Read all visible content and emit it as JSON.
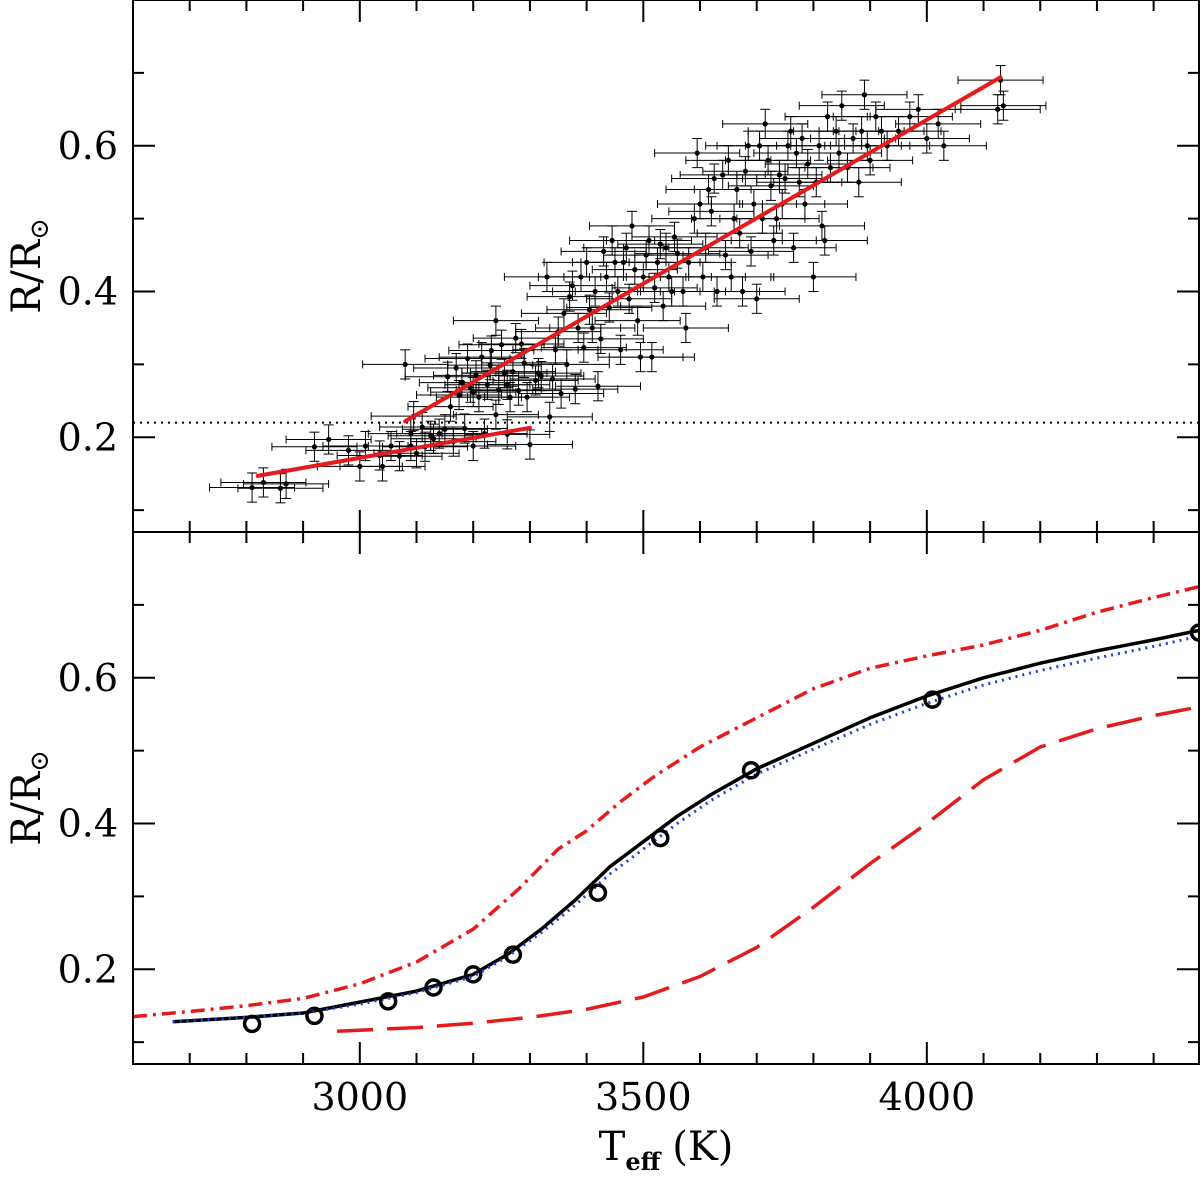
{
  "colors": {
    "fit": "#e41a1c",
    "points": "#000000",
    "threshold": "#000000",
    "model_solid": "#000000",
    "model_blue_dotted": "#1f3fd6",
    "model_red_dashdot": "#e41a1c",
    "model_red_dashed": "#e41a1c"
  },
  "chart_data": [
    {
      "panel": "top",
      "type": "scatter",
      "title": "",
      "xlabel": "",
      "ylabel": "R/R⊙",
      "xlim": [
        2600,
        4480
      ],
      "ylim": [
        0.07,
        0.8
      ],
      "yticks": [
        0.2,
        0.4,
        0.6
      ],
      "ytick_labels": [
        "0.2",
        "0.4",
        "0.6"
      ],
      "threshold_y": 0.22,
      "fits": [
        {
          "name": "low-mass fit",
          "x": [
            2820,
            3300
          ],
          "y": [
            0.147,
            0.213
          ]
        },
        {
          "name": "high-mass fit",
          "x": [
            3080,
            4130
          ],
          "y": [
            0.222,
            0.694
          ]
        }
      ],
      "points": [
        [
          2810,
          0.131
        ],
        [
          2830,
          0.138
        ],
        [
          2860,
          0.13
        ],
        [
          2870,
          0.136
        ],
        [
          2920,
          0.187
        ],
        [
          2945,
          0.197
        ],
        [
          2980,
          0.182
        ],
        [
          3000,
          0.16
        ],
        [
          3040,
          0.16
        ],
        [
          3010,
          0.188
        ],
        [
          3035,
          0.175
        ],
        [
          3055,
          0.188
        ],
        [
          3070,
          0.174
        ],
        [
          3080,
          0.3
        ],
        [
          3090,
          0.205
        ],
        [
          3090,
          0.188
        ],
        [
          3095,
          0.229
        ],
        [
          3100,
          0.178
        ],
        [
          3110,
          0.214
        ],
        [
          3115,
          0.187
        ],
        [
          3125,
          0.202
        ],
        [
          3130,
          0.198
        ],
        [
          3140,
          0.205
        ],
        [
          3150,
          0.211
        ],
        [
          3155,
          0.283
        ],
        [
          3160,
          0.242
        ],
        [
          3165,
          0.194
        ],
        [
          3170,
          0.295
        ],
        [
          3175,
          0.258
        ],
        [
          3180,
          0.275
        ],
        [
          3185,
          0.212
        ],
        [
          3190,
          0.308
        ],
        [
          3195,
          0.268
        ],
        [
          3200,
          0.188
        ],
        [
          3200,
          0.262
        ],
        [
          3205,
          0.285
        ],
        [
          3210,
          0.255
        ],
        [
          3215,
          0.31
        ],
        [
          3220,
          0.205
        ],
        [
          3225,
          0.272
        ],
        [
          3230,
          0.299
        ],
        [
          3232,
          0.319
        ],
        [
          3240,
          0.36
        ],
        [
          3240,
          0.231
        ],
        [
          3245,
          0.265
        ],
        [
          3250,
          0.327
        ],
        [
          3255,
          0.288
        ],
        [
          3260,
          0.204
        ],
        [
          3260,
          0.272
        ],
        [
          3265,
          0.255
        ],
        [
          3270,
          0.29
        ],
        [
          3275,
          0.336
        ],
        [
          3280,
          0.264
        ],
        [
          3285,
          0.328
        ],
        [
          3290,
          0.302
        ],
        [
          3295,
          0.255
        ],
        [
          3300,
          0.19
        ],
        [
          3310,
          0.278
        ],
        [
          3315,
          0.288
        ],
        [
          3320,
          0.284
        ],
        [
          3330,
          0.42
        ],
        [
          3335,
          0.228
        ],
        [
          3340,
          0.28
        ],
        [
          3345,
          0.32
        ],
        [
          3350,
          0.345
        ],
        [
          3355,
          0.26
        ],
        [
          3360,
          0.37
        ],
        [
          3365,
          0.3
        ],
        [
          3370,
          0.393
        ],
        [
          3375,
          0.408
        ],
        [
          3380,
          0.266
        ],
        [
          3385,
          0.35
        ],
        [
          3390,
          0.42
        ],
        [
          3395,
          0.323
        ],
        [
          3400,
          0.44
        ],
        [
          3405,
          0.375
        ],
        [
          3410,
          0.35
        ],
        [
          3415,
          0.4
        ],
        [
          3420,
          0.27
        ],
        [
          3425,
          0.335
        ],
        [
          3430,
          0.455
        ],
        [
          3435,
          0.42
        ],
        [
          3440,
          0.378
        ],
        [
          3445,
          0.47
        ],
        [
          3450,
          0.44
        ],
        [
          3455,
          0.4
        ],
        [
          3460,
          0.32
        ],
        [
          3465,
          0.44
        ],
        [
          3470,
          0.46
        ],
        [
          3475,
          0.39
        ],
        [
          3480,
          0.49
        ],
        [
          3485,
          0.43
        ],
        [
          3490,
          0.36
        ],
        [
          3495,
          0.31
        ],
        [
          3500,
          0.42
        ],
        [
          3505,
          0.45
        ],
        [
          3510,
          0.47
        ],
        [
          3515,
          0.31
        ],
        [
          3520,
          0.405
        ],
        [
          3525,
          0.44
        ],
        [
          3530,
          0.465
        ],
        [
          3535,
          0.38
        ],
        [
          3540,
          0.46
        ],
        [
          3545,
          0.42
        ],
        [
          3550,
          0.4
        ],
        [
          3555,
          0.475
        ],
        [
          3560,
          0.452
        ],
        [
          3570,
          0.4
        ],
        [
          3575,
          0.35
        ],
        [
          3580,
          0.44
        ],
        [
          3590,
          0.5
        ],
        [
          3595,
          0.59
        ],
        [
          3600,
          0.52
        ],
        [
          3605,
          0.42
        ],
        [
          3610,
          0.46
        ],
        [
          3615,
          0.54
        ],
        [
          3620,
          0.51
        ],
        [
          3625,
          0.555
        ],
        [
          3630,
          0.4
        ],
        [
          3640,
          0.56
        ],
        [
          3645,
          0.45
        ],
        [
          3650,
          0.58
        ],
        [
          3655,
          0.42
        ],
        [
          3660,
          0.5
        ],
        [
          3665,
          0.54
        ],
        [
          3670,
          0.48
        ],
        [
          3675,
          0.4
        ],
        [
          3680,
          0.565
        ],
        [
          3685,
          0.6
        ],
        [
          3690,
          0.455
        ],
        [
          3695,
          0.52
        ],
        [
          3700,
          0.39
        ],
        [
          3705,
          0.6
        ],
        [
          3710,
          0.5
        ],
        [
          3715,
          0.63
        ],
        [
          3720,
          0.58
        ],
        [
          3725,
          0.545
        ],
        [
          3730,
          0.47
        ],
        [
          3735,
          0.5
        ],
        [
          3740,
          0.56
        ],
        [
          3745,
          0.52
        ],
        [
          3750,
          0.555
        ],
        [
          3755,
          0.6
        ],
        [
          3760,
          0.62
        ],
        [
          3765,
          0.46
        ],
        [
          3770,
          0.59
        ],
        [
          3775,
          0.55
        ],
        [
          3780,
          0.61
        ],
        [
          3785,
          0.52
        ],
        [
          3790,
          0.575
        ],
        [
          3800,
          0.42
        ],
        [
          3805,
          0.55
        ],
        [
          3810,
          0.6
        ],
        [
          3815,
          0.49
        ],
        [
          3820,
          0.47
        ],
        [
          3825,
          0.64
        ],
        [
          3830,
          0.57
        ],
        [
          3840,
          0.62
        ],
        [
          3845,
          0.59
        ],
        [
          3850,
          0.655
        ],
        [
          3860,
          0.57
        ],
        [
          3870,
          0.61
        ],
        [
          3880,
          0.55
        ],
        [
          3885,
          0.62
        ],
        [
          3890,
          0.67
        ],
        [
          3895,
          0.6
        ],
        [
          3900,
          0.58
        ],
        [
          3910,
          0.64
        ],
        [
          3920,
          0.62
        ],
        [
          3930,
          0.6
        ],
        [
          3950,
          0.62
        ],
        [
          3970,
          0.64
        ],
        [
          3985,
          0.65
        ],
        [
          4000,
          0.61
        ],
        [
          4020,
          0.63
        ],
        [
          4030,
          0.6
        ],
        [
          4125,
          0.65
        ],
        [
          4130,
          0.69
        ],
        [
          4135,
          0.655
        ]
      ],
      "x_err": 75,
      "y_err": 0.02
    },
    {
      "panel": "bottom",
      "type": "line",
      "title": "",
      "xlabel": "Teff (K)",
      "ylabel": "R/R⊙",
      "xlim": [
        2600,
        4480
      ],
      "ylim": [
        0.07,
        0.8
      ],
      "xticks": [
        3000,
        3500,
        4000
      ],
      "xtick_labels": [
        "3000",
        "3500",
        "4000"
      ],
      "yticks": [
        0.2,
        0.4,
        0.6
      ],
      "ytick_labels": [
        "0.2",
        "0.4",
        "0.6"
      ],
      "series": [
        {
          "name": "model solid black",
          "style": "solid",
          "x": [
            2670,
            2800,
            2900,
            3000,
            3100,
            3200,
            3260,
            3320,
            3380,
            3440,
            3500,
            3560,
            3620,
            3700,
            3800,
            3900,
            4000,
            4100,
            4200,
            4300,
            4400,
            4480
          ],
          "y": [
            0.128,
            0.134,
            0.14,
            0.155,
            0.17,
            0.193,
            0.22,
            0.255,
            0.295,
            0.34,
            0.375,
            0.41,
            0.44,
            0.475,
            0.51,
            0.545,
            0.575,
            0.6,
            0.62,
            0.637,
            0.652,
            0.665
          ]
        },
        {
          "name": "model blue dotted",
          "style": "dotted",
          "x": [
            2670,
            2800,
            2900,
            3000,
            3100,
            3200,
            3260,
            3320,
            3380,
            3440,
            3500,
            3560,
            3620,
            3700,
            3800,
            3900,
            4000,
            4100,
            4200,
            4300,
            4400,
            4480
          ],
          "y": [
            0.128,
            0.134,
            0.14,
            0.152,
            0.168,
            0.19,
            0.217,
            0.25,
            0.288,
            0.33,
            0.365,
            0.4,
            0.432,
            0.468,
            0.502,
            0.536,
            0.565,
            0.59,
            0.61,
            0.627,
            0.643,
            0.657
          ]
        },
        {
          "name": "model red dash-dot",
          "style": "dashdot",
          "x": [
            2600,
            2700,
            2800,
            2900,
            3000,
            3100,
            3200,
            3280,
            3350,
            3400,
            3460,
            3520,
            3600,
            3700,
            3800,
            3900,
            4000,
            4100,
            4200,
            4300,
            4400,
            4480
          ],
          "y": [
            0.135,
            0.142,
            0.15,
            0.16,
            0.18,
            0.21,
            0.255,
            0.31,
            0.365,
            0.39,
            0.43,
            0.465,
            0.505,
            0.545,
            0.585,
            0.613,
            0.63,
            0.645,
            0.665,
            0.69,
            0.71,
            0.725
          ]
        },
        {
          "name": "model red dashed",
          "style": "dashed",
          "x": [
            2960,
            3100,
            3200,
            3300,
            3400,
            3500,
            3600,
            3700,
            3800,
            3900,
            4000,
            4100,
            4200,
            4300,
            4400,
            4480
          ],
          "y": [
            0.115,
            0.12,
            0.126,
            0.134,
            0.145,
            0.162,
            0.19,
            0.23,
            0.285,
            0.345,
            0.4,
            0.46,
            0.505,
            0.53,
            0.548,
            0.56
          ]
        }
      ],
      "markers": {
        "name": "open circles",
        "x": [
          2810,
          2920,
          3050,
          3130,
          3200,
          3270,
          3420,
          3530,
          3690,
          4010,
          4480
        ],
        "y": [
          0.125,
          0.136,
          0.156,
          0.175,
          0.193,
          0.22,
          0.305,
          0.38,
          0.473,
          0.57,
          0.662
        ]
      }
    }
  ],
  "labels": {
    "top_ylabel_main": "R/R",
    "bottom_ylabel_main": "R/R",
    "sun_symbol": "⊙",
    "xlabel_main": "T",
    "xlabel_sub": "eff",
    "xlabel_unit": "(K)"
  }
}
